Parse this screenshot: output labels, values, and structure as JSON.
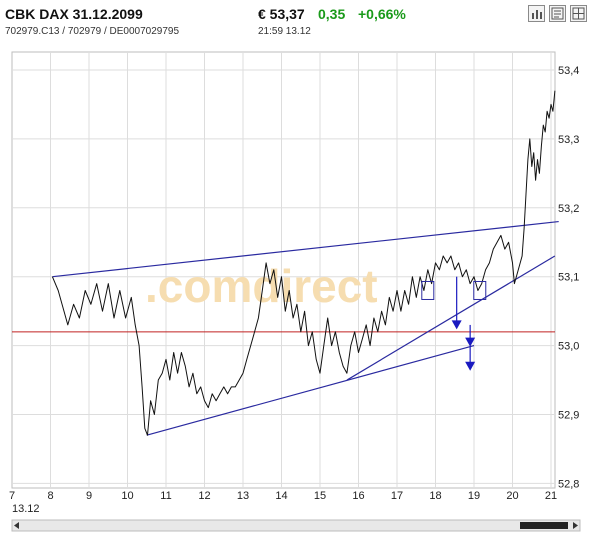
{
  "header": {
    "title": "CBK DAX 31.12.2099",
    "ids": "702979.C13  /  702979  /  DE0007029795",
    "price": "€ 53,37",
    "change": "0,35",
    "change_pct": "+0,66%",
    "time": "21:59   13.12",
    "colors": {
      "up": "#1a9a1a"
    },
    "tools": [
      {
        "name": "chart-type-icon"
      },
      {
        "name": "news-icon"
      },
      {
        "name": "grid-icon"
      }
    ]
  },
  "chart_data": {
    "type": "line",
    "watermark": ".comdirect",
    "x_ticks": [
      "7",
      "8",
      "9",
      "10",
      "11",
      "12",
      "13",
      "14",
      "15",
      "16",
      "17",
      "18",
      "19",
      "20",
      "21"
    ],
    "x_sublabel": "13.12",
    "y_ticks": [
      "53,4",
      "53,3",
      "53,2",
      "53,1",
      "53,0",
      "52,9",
      "52,8"
    ],
    "ylim": [
      52.8,
      53.4
    ],
    "xlim": [
      7,
      21.2
    ],
    "grid": true,
    "reference_line": {
      "value": 53.02,
      "color": "#c02020"
    },
    "trendlines": [
      {
        "x1": 8.05,
        "y1": 53.1,
        "x2": 21.2,
        "y2": 53.18
      },
      {
        "x1": 10.5,
        "y1": 52.87,
        "x2": 19.0,
        "y2": 53.0
      },
      {
        "x1": 15.7,
        "y1": 52.95,
        "x2": 21.1,
        "y2": 53.13
      }
    ],
    "boxes": [
      {
        "x": 17.8,
        "y": 53.08
      },
      {
        "x": 19.15,
        "y": 53.08
      }
    ],
    "arrows": [
      {
        "x": 18.55,
        "y1": 53.1,
        "y2": 53.025
      },
      {
        "x": 18.9,
        "y1": 53.03,
        "y2": 53.0
      },
      {
        "x": 18.9,
        "y1": 53.0,
        "y2": 52.965
      }
    ],
    "series": [
      {
        "color": "#111111",
        "points": [
          [
            8.05,
            53.1
          ],
          [
            8.2,
            53.08
          ],
          [
            8.35,
            53.05
          ],
          [
            8.45,
            53.03
          ],
          [
            8.6,
            53.06
          ],
          [
            8.75,
            53.04
          ],
          [
            8.9,
            53.08
          ],
          [
            9.05,
            53.06
          ],
          [
            9.2,
            53.09
          ],
          [
            9.35,
            53.05
          ],
          [
            9.5,
            53.09
          ],
          [
            9.65,
            53.04
          ],
          [
            9.8,
            53.08
          ],
          [
            9.95,
            53.04
          ],
          [
            10.1,
            53.07
          ],
          [
            10.2,
            53.03
          ],
          [
            10.3,
            53.0
          ],
          [
            10.38,
            52.94
          ],
          [
            10.45,
            52.88
          ],
          [
            10.52,
            52.87
          ],
          [
            10.6,
            52.92
          ],
          [
            10.7,
            52.9
          ],
          [
            10.8,
            52.95
          ],
          [
            10.9,
            52.96
          ],
          [
            11.0,
            52.98
          ],
          [
            11.1,
            52.95
          ],
          [
            11.2,
            52.99
          ],
          [
            11.3,
            52.96
          ],
          [
            11.4,
            52.99
          ],
          [
            11.5,
            52.97
          ],
          [
            11.6,
            52.94
          ],
          [
            11.7,
            52.96
          ],
          [
            11.8,
            52.93
          ],
          [
            11.9,
            52.94
          ],
          [
            12.0,
            52.92
          ],
          [
            12.1,
            52.91
          ],
          [
            12.2,
            52.93
          ],
          [
            12.3,
            52.92
          ],
          [
            12.4,
            52.93
          ],
          [
            12.5,
            52.94
          ],
          [
            12.6,
            52.93
          ],
          [
            12.7,
            52.94
          ],
          [
            12.8,
            52.94
          ],
          [
            12.9,
            52.95
          ],
          [
            13.0,
            52.96
          ],
          [
            13.1,
            52.98
          ],
          [
            13.2,
            53.0
          ],
          [
            13.3,
            53.02
          ],
          [
            13.4,
            53.04
          ],
          [
            13.5,
            53.08
          ],
          [
            13.6,
            53.12
          ],
          [
            13.7,
            53.09
          ],
          [
            13.8,
            53.11
          ],
          [
            13.9,
            53.07
          ],
          [
            14.0,
            53.1
          ],
          [
            14.1,
            53.05
          ],
          [
            14.2,
            53.08
          ],
          [
            14.3,
            53.04
          ],
          [
            14.4,
            53.06
          ],
          [
            14.5,
            53.02
          ],
          [
            14.6,
            53.05
          ],
          [
            14.7,
            53.0
          ],
          [
            14.8,
            53.02
          ],
          [
            14.9,
            52.98
          ],
          [
            15.0,
            52.96
          ],
          [
            15.1,
            53.0
          ],
          [
            15.2,
            53.04
          ],
          [
            15.3,
            53.0
          ],
          [
            15.4,
            53.02
          ],
          [
            15.5,
            52.99
          ],
          [
            15.6,
            52.97
          ],
          [
            15.7,
            52.96
          ],
          [
            15.8,
            53.0
          ],
          [
            15.9,
            53.02
          ],
          [
            16.0,
            52.99
          ],
          [
            16.1,
            53.01
          ],
          [
            16.2,
            53.03
          ],
          [
            16.3,
            53.0
          ],
          [
            16.4,
            53.04
          ],
          [
            16.5,
            53.02
          ],
          [
            16.6,
            53.05
          ],
          [
            16.7,
            53.03
          ],
          [
            16.8,
            53.07
          ],
          [
            16.9,
            53.05
          ],
          [
            17.0,
            53.08
          ],
          [
            17.1,
            53.05
          ],
          [
            17.2,
            53.08
          ],
          [
            17.3,
            53.06
          ],
          [
            17.4,
            53.1
          ],
          [
            17.5,
            53.07
          ],
          [
            17.6,
            53.1
          ],
          [
            17.7,
            53.08
          ],
          [
            17.8,
            53.11
          ],
          [
            17.9,
            53.09
          ],
          [
            18.0,
            53.12
          ],
          [
            18.1,
            53.11
          ],
          [
            18.2,
            53.13
          ],
          [
            18.3,
            53.12
          ],
          [
            18.4,
            53.13
          ],
          [
            18.5,
            53.11
          ],
          [
            18.6,
            53.12
          ],
          [
            18.7,
            53.1
          ],
          [
            18.8,
            53.11
          ],
          [
            18.9,
            53.09
          ],
          [
            19.0,
            53.1
          ],
          [
            19.1,
            53.08
          ],
          [
            19.2,
            53.09
          ],
          [
            19.3,
            53.11
          ],
          [
            19.4,
            53.12
          ],
          [
            19.5,
            53.14
          ],
          [
            19.6,
            53.15
          ],
          [
            19.7,
            53.16
          ],
          [
            19.8,
            53.14
          ],
          [
            19.9,
            53.15
          ],
          [
            20.0,
            53.12
          ],
          [
            20.05,
            53.09
          ],
          [
            20.15,
            53.11
          ],
          [
            20.25,
            53.13
          ],
          [
            20.3,
            53.17
          ],
          [
            20.35,
            53.22
          ],
          [
            20.4,
            53.27
          ],
          [
            20.45,
            53.3
          ],
          [
            20.5,
            53.26
          ],
          [
            20.55,
            53.28
          ],
          [
            20.6,
            53.24
          ],
          [
            20.65,
            53.27
          ],
          [
            20.7,
            53.25
          ],
          [
            20.75,
            53.29
          ],
          [
            20.8,
            53.32
          ],
          [
            20.85,
            53.31
          ],
          [
            20.9,
            53.34
          ],
          [
            20.95,
            53.33
          ],
          [
            21.0,
            53.35
          ],
          [
            21.05,
            53.34
          ],
          [
            21.1,
            53.37
          ]
        ]
      }
    ]
  }
}
